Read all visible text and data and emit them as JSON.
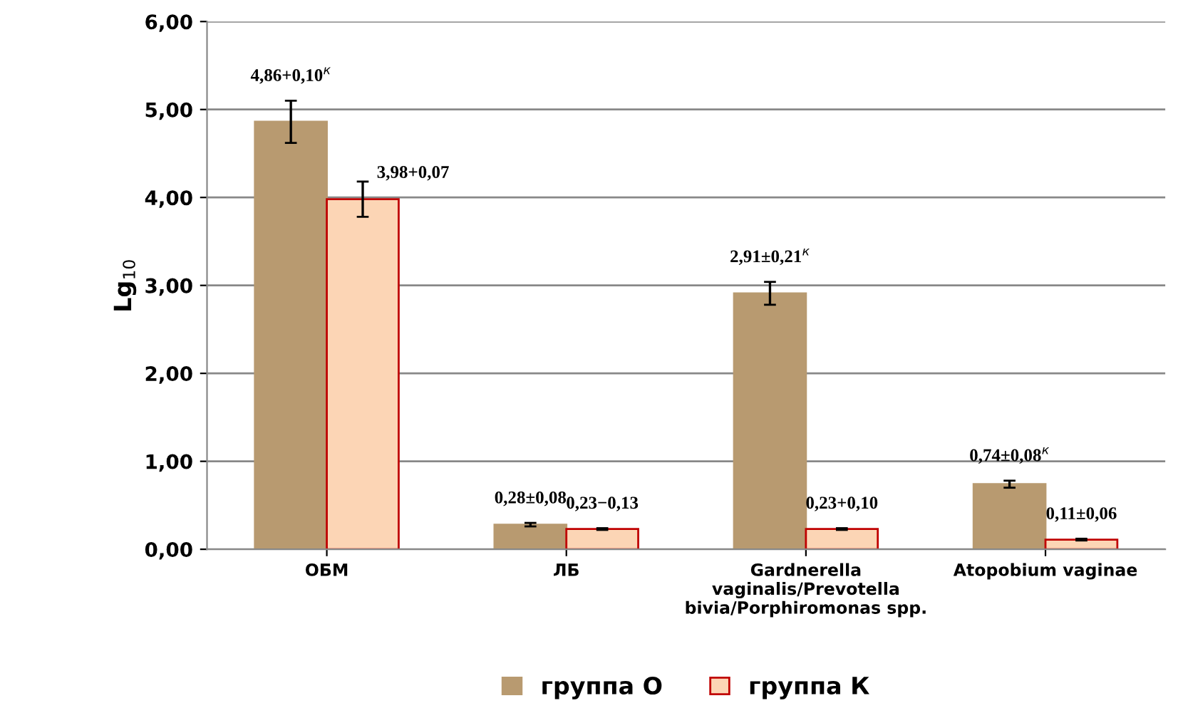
{
  "chart_data": {
    "type": "bar",
    "ylabel": "Lg$_{10}$",
    "categories": [
      "ОБМ",
      "ЛБ",
      "Gardnerella vaginalis/Prevotella bivia/Porphiromonas spp.",
      "Atopobium vaginae"
    ],
    "series": [
      {
        "name": "группа О",
        "color": "#b89a70",
        "values": [
          4.86,
          0.28,
          2.91,
          0.74
        ],
        "errors": [
          0.24,
          0.02,
          0.13,
          0.04
        ],
        "value_labels": [
          "4,86+0,10$^{к}$",
          "0,28±0,08",
          "2,91±0,21$^{к}$",
          "0,74±0,08$^{к}$"
        ]
      },
      {
        "name": "группа К",
        "color": "#fcd5b5",
        "values": [
          3.98,
          0.23,
          0.23,
          0.11
        ],
        "errors": [
          0.2,
          0.01,
          0.01,
          0.01
        ],
        "value_labels": [
          "3,98+0,07",
          "0,23−0,13",
          "0,23+0,10",
          "0,11±0,06"
        ]
      }
    ],
    "ylim": [
      0,
      6
    ],
    "yticks": [
      {
        "value": 0,
        "label": "0,00"
      },
      {
        "value": 1,
        "label": "1,00"
      },
      {
        "value": 2,
        "label": "2,00"
      },
      {
        "value": 3,
        "label": "3,00"
      },
      {
        "value": 4,
        "label": "4,00"
      },
      {
        "value": 5,
        "label": "5,00"
      },
      {
        "value": 6,
        "label": "6,00"
      }
    ],
    "grid": "y",
    "legend": "bottom"
  }
}
